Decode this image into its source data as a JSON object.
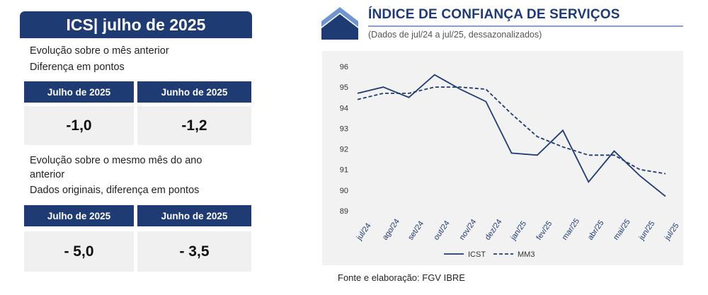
{
  "panel": {
    "title": "ICS| julho de 2025",
    "section1": {
      "line1": "Evolução sobre o mês anterior",
      "line2": "Diferença em pontos"
    },
    "table1": {
      "headers": [
        "Julho de 2025",
        "Junho de 2025"
      ],
      "values": [
        "-1,0",
        "-1,2"
      ]
    },
    "section2": {
      "line1": "Evolução sobre o mesmo mês do ano",
      "line2": "anterior",
      "line3": "Dados originais, diferença em pontos"
    },
    "table2": {
      "headers": [
        "Julho de 2025",
        "Junho de 2025"
      ],
      "values": [
        "- 5,0",
        "- 3,5"
      ]
    }
  },
  "chart": {
    "title": "ÍNDICE DE CONFIANÇA DE SERVIÇOS",
    "subtitle": "(Dados de jul/24 a jul/25, dessazonalizados)",
    "source": "Fonte e elaboração: FGV IBRE"
  },
  "colors": {
    "primary": "#1f3b73",
    "box_bg": "#f0f0f0",
    "chart_bg": "#f2f2f2",
    "logo_light": "#6f95cf"
  },
  "chart_data": {
    "type": "line",
    "categories": [
      "jul/24",
      "ago/24",
      "set/24",
      "out/24",
      "nov/24",
      "dez/24",
      "jan/25",
      "fev/25",
      "mar/25",
      "abr/25",
      "mai/25",
      "jun/25",
      "jul/25"
    ],
    "series": [
      {
        "name": "ICST",
        "style": "solid",
        "values": [
          94.7,
          95.0,
          94.5,
          95.6,
          94.9,
          94.3,
          91.8,
          91.7,
          92.9,
          90.4,
          91.9,
          90.7,
          89.7
        ]
      },
      {
        "name": "MM3",
        "style": "dashed",
        "values": [
          94.4,
          94.7,
          94.7,
          95.0,
          95.0,
          94.9,
          93.7,
          92.6,
          92.1,
          91.7,
          91.7,
          91.0,
          90.8
        ]
      }
    ],
    "yticks": [
      89,
      90,
      91,
      92,
      93,
      94,
      95,
      96
    ],
    "ylim": [
      89,
      96
    ],
    "grid": false,
    "legend": "bottom"
  }
}
